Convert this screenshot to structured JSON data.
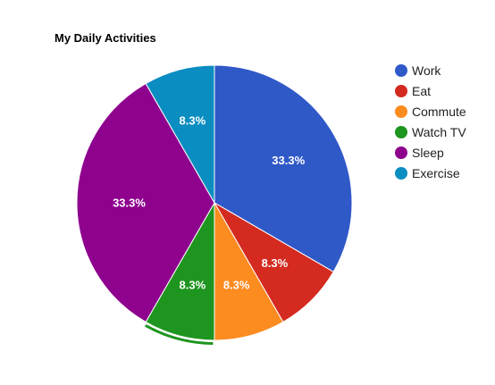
{
  "chart_data": {
    "type": "pie",
    "title": "My Daily Activities",
    "legend_position": "right",
    "slices": [
      {
        "name": "Work",
        "value": 33.3,
        "label": "33.3%",
        "color": "#3059c8"
      },
      {
        "name": "Eat",
        "value": 8.3,
        "label": "8.3%",
        "color": "#d42a20"
      },
      {
        "name": "Commute",
        "value": 8.3,
        "label": "8.3%",
        "color": "#fc8b20"
      },
      {
        "name": "Watch TV",
        "value": 8.3,
        "label": "8.3%",
        "color": "#1e951e"
      },
      {
        "name": "Sleep",
        "value": 33.3,
        "label": "33.3%",
        "color": "#8e028e"
      },
      {
        "name": "Exercise",
        "value": 8.3,
        "label": "8.3%",
        "color": "#0a8dc0"
      }
    ],
    "selected_slice": "Watch TV"
  }
}
